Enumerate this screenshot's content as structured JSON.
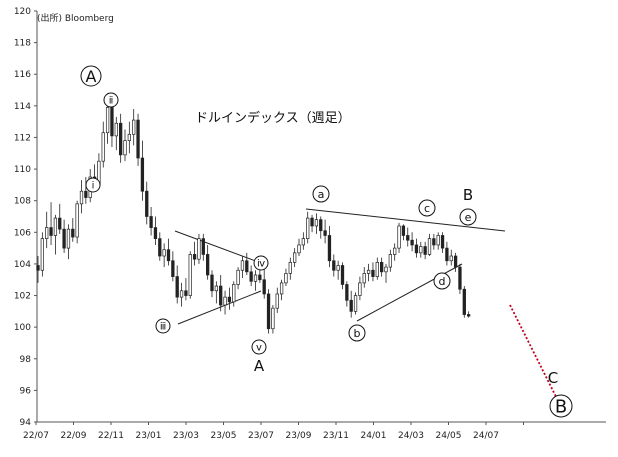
{
  "source": "(出所) Bloomberg",
  "chart_data": {
    "type": "candlestick",
    "title": "ドルインデックス（週足）",
    "xlabel": "",
    "ylabel": "",
    "ylim": [
      94,
      120
    ],
    "y_ticks": [
      94,
      96,
      98,
      100,
      102,
      104,
      106,
      108,
      110,
      112,
      114,
      116,
      118,
      120
    ],
    "x_ticks": [
      "22/07",
      "22/09",
      "22/11",
      "23/01",
      "23/03",
      "23/05",
      "23/07",
      "23/09",
      "23/11",
      "24/01",
      "24/03",
      "24/05",
      "24/07"
    ],
    "grid": false,
    "colors": {
      "candle": "#222222",
      "trendline": "#222222",
      "forecast": "#c0001a"
    },
    "series": [
      {
        "values": [
          [
            103.9,
            104.5,
            102.8,
            103.6
          ],
          [
            103.6,
            106.0,
            103.2,
            105.6
          ],
          [
            105.6,
            107.3,
            105.0,
            106.3
          ],
          [
            106.3,
            107.9,
            105.2,
            105.8
          ],
          [
            105.8,
            107.1,
            104.6,
            106.9
          ],
          [
            106.9,
            107.8,
            105.9,
            106.2
          ],
          [
            106.2,
            106.8,
            104.7,
            105.0
          ],
          [
            105.0,
            106.5,
            104.3,
            106.2
          ],
          [
            106.2,
            106.9,
            105.4,
            105.7
          ],
          [
            105.7,
            108.0,
            105.3,
            107.8
          ],
          [
            107.8,
            109.3,
            107.2,
            108.6
          ],
          [
            108.6,
            109.5,
            107.8,
            108.2
          ],
          [
            108.2,
            110.0,
            107.9,
            109.5
          ],
          [
            109.5,
            110.3,
            108.6,
            109.0
          ],
          [
            109.0,
            111.0,
            108.8,
            110.5
          ],
          [
            110.5,
            113.0,
            110.1,
            112.3
          ],
          [
            112.3,
            114.8,
            111.6,
            113.9
          ],
          [
            113.9,
            114.7,
            111.4,
            112.1
          ],
          [
            112.1,
            113.3,
            111.2,
            112.9
          ],
          [
            112.9,
            113.5,
            110.4,
            110.9
          ],
          [
            110.9,
            112.5,
            110.5,
            111.8
          ],
          [
            111.8,
            113.0,
            111.0,
            112.2
          ],
          [
            112.2,
            113.8,
            111.5,
            113.1
          ],
          [
            113.1,
            113.5,
            110.2,
            110.7
          ],
          [
            110.7,
            111.8,
            108.0,
            108.6
          ],
          [
            108.6,
            109.2,
            106.5,
            107.0
          ],
          [
            107.0,
            107.6,
            105.8,
            106.3
          ],
          [
            106.3,
            107.0,
            105.2,
            105.6
          ],
          [
            105.6,
            106.0,
            104.2,
            104.5
          ],
          [
            104.5,
            105.3,
            103.8,
            104.9
          ],
          [
            104.9,
            105.6,
            103.9,
            104.2
          ],
          [
            104.2,
            104.8,
            102.9,
            103.2
          ],
          [
            103.2,
            103.9,
            101.5,
            101.9
          ],
          [
            101.9,
            102.8,
            101.3,
            102.3
          ],
          [
            102.3,
            103.1,
            101.7,
            102.0
          ],
          [
            102.0,
            104.8,
            101.8,
            104.6
          ],
          [
            104.6,
            105.4,
            103.9,
            104.3
          ],
          [
            104.3,
            105.9,
            104.0,
            105.6
          ],
          [
            105.6,
            105.9,
            104.2,
            104.6
          ],
          [
            104.6,
            105.2,
            103.0,
            103.3
          ],
          [
            103.3,
            103.6,
            101.9,
            102.3
          ],
          [
            102.3,
            102.9,
            101.5,
            102.6
          ],
          [
            102.6,
            103.3,
            101.0,
            101.4
          ],
          [
            101.4,
            102.3,
            100.8,
            101.9
          ],
          [
            101.9,
            102.5,
            101.1,
            101.6
          ],
          [
            101.6,
            102.9,
            101.3,
            102.7
          ],
          [
            102.7,
            103.8,
            102.4,
            103.6
          ],
          [
            103.6,
            104.5,
            103.1,
            104.2
          ],
          [
            104.2,
            104.7,
            103.3,
            103.5
          ],
          [
            103.5,
            103.9,
            102.6,
            102.9
          ],
          [
            102.9,
            103.6,
            102.3,
            103.3
          ],
          [
            103.3,
            104.0,
            102.8,
            103.0
          ],
          [
            103.0,
            103.7,
            101.8,
            102.1
          ],
          [
            102.1,
            102.4,
            99.6,
            99.9
          ],
          [
            99.9,
            101.4,
            99.6,
            101.2
          ],
          [
            101.2,
            102.5,
            100.9,
            102.1
          ],
          [
            102.1,
            103.0,
            101.7,
            102.8
          ],
          [
            102.8,
            103.7,
            102.6,
            103.4
          ],
          [
            103.4,
            104.4,
            103.0,
            104.1
          ],
          [
            104.1,
            105.0,
            103.8,
            104.7
          ],
          [
            104.7,
            105.6,
            104.5,
            105.2
          ],
          [
            105.2,
            106.0,
            104.9,
            105.6
          ],
          [
            105.6,
            107.3,
            105.3,
            106.9
          ],
          [
            106.9,
            107.1,
            106.0,
            106.4
          ],
          [
            106.4,
            107.2,
            105.9,
            106.8
          ],
          [
            106.8,
            107.0,
            105.6,
            106.1
          ],
          [
            106.1,
            106.8,
            105.3,
            105.8
          ],
          [
            105.8,
            106.4,
            103.8,
            104.2
          ],
          [
            104.2,
            104.6,
            103.2,
            103.6
          ],
          [
            103.6,
            104.2,
            103.0,
            103.9
          ],
          [
            103.9,
            104.1,
            102.4,
            102.7
          ],
          [
            102.7,
            102.9,
            101.3,
            101.7
          ],
          [
            101.7,
            102.3,
            100.6,
            101.0
          ],
          [
            101.0,
            102.2,
            100.8,
            102.0
          ],
          [
            102.0,
            103.2,
            101.7,
            102.8
          ],
          [
            102.8,
            103.8,
            102.5,
            103.4
          ],
          [
            103.4,
            104.0,
            102.9,
            103.6
          ],
          [
            103.6,
            104.1,
            102.9,
            103.2
          ],
          [
            103.2,
            104.4,
            103.0,
            104.1
          ],
          [
            104.1,
            104.4,
            103.2,
            103.5
          ],
          [
            103.5,
            104.0,
            102.8,
            103.8
          ],
          [
            103.8,
            104.9,
            103.5,
            104.6
          ],
          [
            104.6,
            105.3,
            104.2,
            105.0
          ],
          [
            105.0,
            106.6,
            104.7,
            106.4
          ],
          [
            106.4,
            106.5,
            105.5,
            105.8
          ],
          [
            105.8,
            106.3,
            105.1,
            105.5
          ],
          [
            105.5,
            106.0,
            104.8,
            105.2
          ],
          [
            105.2,
            105.6,
            104.4,
            104.7
          ],
          [
            104.7,
            105.4,
            104.4,
            105.1
          ],
          [
            105.1,
            105.4,
            104.3,
            104.6
          ],
          [
            104.6,
            105.9,
            104.5,
            105.6
          ],
          [
            105.6,
            105.9,
            104.9,
            105.2
          ],
          [
            105.2,
            106.0,
            104.9,
            105.8
          ],
          [
            105.8,
            106.0,
            104.7,
            105.0
          ],
          [
            105.0,
            105.4,
            103.9,
            104.2
          ],
          [
            104.2,
            104.9,
            103.9,
            104.5
          ],
          [
            104.5,
            104.7,
            103.5,
            103.8
          ],
          [
            103.8,
            104.0,
            102.1,
            102.4
          ],
          [
            102.4,
            102.6,
            100.6,
            100.8
          ],
          [
            100.8,
            101.0,
            100.6,
            100.7
          ]
        ]
      }
    ],
    "annotations": {
      "circled": [
        {
          "text": "A"
        },
        {
          "text": "ⅱ"
        },
        {
          "text": "ⅰ"
        },
        {
          "text": "ⅲ"
        },
        {
          "text": "ⅳ"
        },
        {
          "text": "ⅴ"
        },
        {
          "text": "a"
        },
        {
          "text": "b"
        },
        {
          "text": "c"
        },
        {
          "text": "d"
        },
        {
          "text": "e"
        },
        {
          "text": "B"
        }
      ],
      "plain": [
        {
          "text": "A"
        },
        {
          "text": "B"
        },
        {
          "text": "C"
        }
      ]
    }
  }
}
